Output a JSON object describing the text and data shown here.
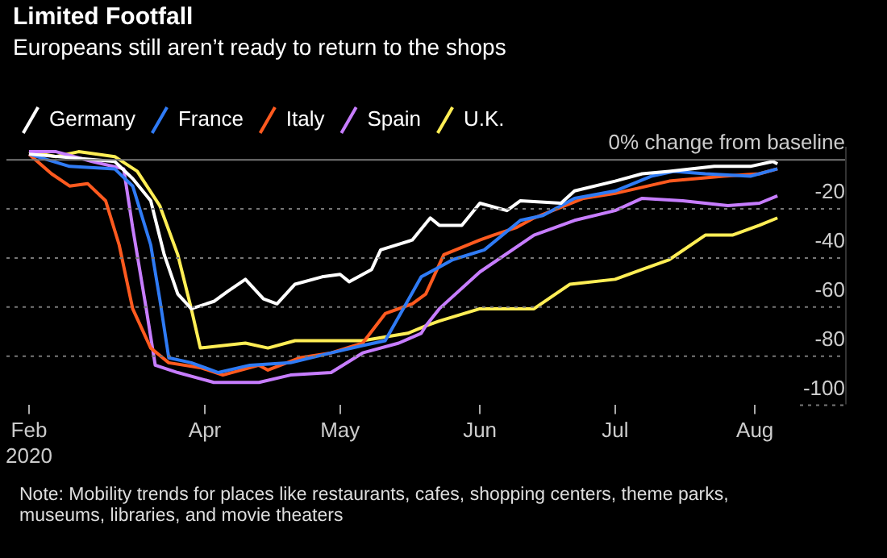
{
  "chart_data": {
    "type": "line",
    "title": "Limited Footfall",
    "subtitle": "Europeans still aren’t ready to return to the shops",
    "annotations": [
      "Note: Mobility trends for places like restaurants, cafes, shopping centers, theme parks, museums, libraries, and movie theaters"
    ],
    "legend": "top left",
    "grid": "y",
    "marker": "none",
    "line_style": "solid",
    "xlim": [
      "2020-02-17",
      "2020-08-21"
    ],
    "xticks": [
      {
        "value": "2020-02-22",
        "label": "Feb\n2020"
      },
      {
        "value": "2020-04-01",
        "label": "Apr"
      },
      {
        "value": "2020-05-01",
        "label": "May"
      },
      {
        "value": "2020-06-01",
        "label": "Jun"
      },
      {
        "value": "2020-07-01",
        "label": "Jul"
      },
      {
        "value": "2020-08-01",
        "label": "Aug"
      }
    ],
    "ylim": [
      -100,
      5
    ],
    "yticks": [
      {
        "value": 0,
        "label": "0% change from baseline"
      },
      -20,
      -40,
      -60,
      -80,
      -100
    ],
    "series": [
      {
        "name": "Germany",
        "color": "#ffffff",
        "x": [
          "2020-02-22",
          "2020-03-12",
          "2020-03-16",
          "2020-03-20",
          "2020-03-23",
          "2020-03-26",
          "2020-03-29",
          "2020-04-03",
          "2020-04-06",
          "2020-04-10",
          "2020-04-14",
          "2020-04-17",
          "2020-04-21",
          "2020-04-27",
          "2020-05-01",
          "2020-05-03",
          "2020-05-08",
          "2020-05-10",
          "2020-05-17",
          "2020-05-21",
          "2020-05-23",
          "2020-05-28",
          "2020-06-01",
          "2020-06-07",
          "2020-06-10",
          "2020-06-19",
          "2020-06-22",
          "2020-07-01",
          "2020-07-07",
          "2020-07-13",
          "2020-07-23",
          "2020-07-31",
          "2020-08-05",
          "2020-08-06"
        ],
        "values": [
          2,
          -1,
          -8,
          -17,
          -39,
          -55,
          -61,
          -58,
          -54,
          -49,
          -57,
          -59,
          -51,
          -48,
          -47,
          -50,
          -45,
          -37,
          -33,
          -24,
          -27,
          -27,
          -18,
          -21,
          -17,
          -18,
          -13,
          -9,
          -6,
          -5,
          -3,
          -3,
          -1,
          -2
        ]
      },
      {
        "name": "France",
        "color": "#2f7bf5",
        "x": [
          "2020-02-22",
          "2020-03-02",
          "2020-03-12",
          "2020-03-16",
          "2020-03-20",
          "2020-03-22",
          "2020-03-24",
          "2020-03-29",
          "2020-04-04",
          "2020-04-11",
          "2020-04-20",
          "2020-04-29",
          "2020-05-06",
          "2020-05-11",
          "2020-05-15",
          "2020-05-19",
          "2020-05-23",
          "2020-05-26",
          "2020-06-02",
          "2020-06-10",
          "2020-06-15",
          "2020-06-22",
          "2020-07-01",
          "2020-07-09",
          "2020-07-14",
          "2020-07-21",
          "2020-07-31",
          "2020-08-06"
        ],
        "values": [
          2,
          -3,
          -4,
          -11,
          -35,
          -57,
          -81,
          -83,
          -87,
          -84,
          -83,
          -79,
          -76,
          -74,
          -61,
          -48,
          -44,
          -41,
          -37,
          -25,
          -23,
          -16,
          -13,
          -7,
          -5,
          -6,
          -7,
          -4
        ]
      },
      {
        "name": "Italy",
        "color": "#ff5a1f",
        "x": [
          "2020-02-22",
          "2020-02-27",
          "2020-03-02",
          "2020-03-06",
          "2020-03-10",
          "2020-03-13",
          "2020-03-16",
          "2020-03-20",
          "2020-03-24",
          "2020-03-31",
          "2020-04-05",
          "2020-04-13",
          "2020-04-15",
          "2020-04-22",
          "2020-04-29",
          "2020-05-06",
          "2020-05-11",
          "2020-05-17",
          "2020-05-20",
          "2020-05-24",
          "2020-06-01",
          "2020-06-04",
          "2020-06-09",
          "2020-06-13",
          "2020-06-24",
          "2020-07-01",
          "2020-07-13",
          "2020-07-25",
          "2020-08-02",
          "2020-08-06"
        ],
        "values": [
          2,
          -6,
          -11,
          -10,
          -17,
          -35,
          -61,
          -77,
          -83,
          -85,
          -88,
          -84,
          -86,
          -81,
          -79,
          -75,
          -63,
          -59,
          -55,
          -39,
          -33,
          -31,
          -28,
          -24,
          -16,
          -14,
          -9,
          -7,
          -6,
          -4
        ]
      },
      {
        "name": "Spain",
        "color": "#c77dff",
        "x": [
          "2020-02-22",
          "2020-02-28",
          "2020-03-07",
          "2020-03-14",
          "2020-03-16",
          "2020-03-19",
          "2020-03-21",
          "2020-03-26",
          "2020-04-03",
          "2020-04-13",
          "2020-04-20",
          "2020-04-29",
          "2020-05-06",
          "2020-05-14",
          "2020-05-19",
          "2020-05-20",
          "2020-05-23",
          "2020-06-01",
          "2020-06-13",
          "2020-06-22",
          "2020-07-01",
          "2020-07-07",
          "2020-07-16",
          "2020-07-26",
          "2020-08-02",
          "2020-08-06"
        ],
        "values": [
          3,
          3,
          -1,
          -4,
          -28,
          -61,
          -84,
          -87,
          -91,
          -91,
          -88,
          -87,
          -79,
          -75,
          -71,
          -68,
          -61,
          -46,
          -31,
          -25,
          -21,
          -16,
          -17,
          -19,
          -18,
          -15
        ]
      },
      {
        "name": "U.K.",
        "color": "#ffee55",
        "x": [
          "2020-02-22",
          "2020-02-28",
          "2020-03-04",
          "2020-03-12",
          "2020-03-17",
          "2020-03-22",
          "2020-03-26",
          "2020-03-29",
          "2020-03-31",
          "2020-04-10",
          "2020-04-15",
          "2020-04-21",
          "2020-04-29",
          "2020-05-06",
          "2020-05-16",
          "2020-05-20",
          "2020-05-23",
          "2020-06-01",
          "2020-06-13",
          "2020-06-21",
          "2020-07-01",
          "2020-07-07",
          "2020-07-13",
          "2020-07-21",
          "2020-07-27",
          "2020-08-02",
          "2020-08-06"
        ],
        "values": [
          3,
          1,
          3,
          1,
          -5,
          -19,
          -39,
          -61,
          -77,
          -75,
          -77,
          -74,
          -74,
          -74,
          -71,
          -68,
          -66,
          -61,
          -61,
          -51,
          -49,
          -45,
          -41,
          -31,
          -31,
          -27,
          -24
        ]
      }
    ]
  }
}
